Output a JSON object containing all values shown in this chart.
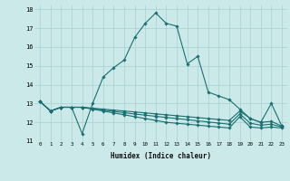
{
  "xlabel": "Humidex (Indice chaleur)",
  "xlim": [
    -0.5,
    23.5
  ],
  "ylim": [
    11,
    18.2
  ],
  "yticks": [
    11,
    12,
    13,
    14,
    15,
    16,
    17,
    18
  ],
  "xticks": [
    0,
    1,
    2,
    3,
    4,
    5,
    6,
    7,
    8,
    9,
    10,
    11,
    12,
    13,
    14,
    15,
    16,
    17,
    18,
    19,
    20,
    21,
    22,
    23
  ],
  "bg_color": "#cce9ea",
  "grid_color": "#a8d0d2",
  "line_color": "#1a7070",
  "lines": [
    [
      13.1,
      12.6,
      12.8,
      12.8,
      11.4,
      13.0,
      14.4,
      14.9,
      15.3,
      16.5,
      17.25,
      17.8,
      17.25,
      17.1,
      15.1,
      15.5,
      13.6,
      13.4,
      13.2,
      12.7,
      12.2,
      12.0,
      13.0,
      11.8
    ],
    [
      13.1,
      12.6,
      12.8,
      12.8,
      12.8,
      12.75,
      12.7,
      12.65,
      12.6,
      12.55,
      12.5,
      12.45,
      12.4,
      12.35,
      12.3,
      12.25,
      12.2,
      12.15,
      12.1,
      12.6,
      12.2,
      12.0,
      12.05,
      11.8
    ],
    [
      13.1,
      12.6,
      12.8,
      12.8,
      12.8,
      12.72,
      12.65,
      12.58,
      12.51,
      12.44,
      12.38,
      12.32,
      12.26,
      12.2,
      12.14,
      12.08,
      12.02,
      11.96,
      11.9,
      12.45,
      11.95,
      11.85,
      11.9,
      11.75
    ],
    [
      13.1,
      12.6,
      12.8,
      12.8,
      12.8,
      12.7,
      12.6,
      12.5,
      12.4,
      12.3,
      12.2,
      12.1,
      12.0,
      11.95,
      11.9,
      11.85,
      11.8,
      11.75,
      11.7,
      12.3,
      11.75,
      11.7,
      11.75,
      11.7
    ]
  ]
}
